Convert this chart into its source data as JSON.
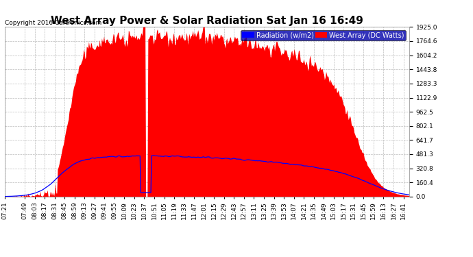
{
  "title": "West Array Power & Solar Radiation Sat Jan 16 16:49",
  "copyright": "Copyright 2016 Cartronics.com",
  "legend_blue": "Radiation (w/m2)",
  "legend_red": "West Array (DC Watts)",
  "yticks": [
    0.0,
    160.4,
    320.8,
    481.3,
    641.7,
    802.1,
    962.5,
    1122.9,
    1283.3,
    1443.8,
    1604.2,
    1764.6,
    1925.0
  ],
  "ymax": 1925.0,
  "ymin": 0.0,
  "background_color": "#ffffff",
  "grid_color": "#bbbbbb",
  "red_color": "#ff0000",
  "blue_color": "#0000ff",
  "x_labels": [
    "07:21",
    "07:49",
    "08:03",
    "08:17",
    "08:31",
    "08:45",
    "08:59",
    "09:13",
    "09:27",
    "09:41",
    "09:55",
    "10:09",
    "10:23",
    "10:37",
    "10:51",
    "11:05",
    "11:19",
    "11:33",
    "11:47",
    "12:01",
    "12:15",
    "12:29",
    "12:43",
    "12:57",
    "13:11",
    "13:25",
    "13:39",
    "13:53",
    "14:07",
    "14:21",
    "14:35",
    "14:49",
    "15:03",
    "15:17",
    "15:31",
    "15:45",
    "15:59",
    "16:13",
    "16:27",
    "16:41"
  ],
  "title_fontsize": 11,
  "copyright_fontsize": 6.5,
  "axis_fontsize": 6.5,
  "legend_fontsize": 7
}
